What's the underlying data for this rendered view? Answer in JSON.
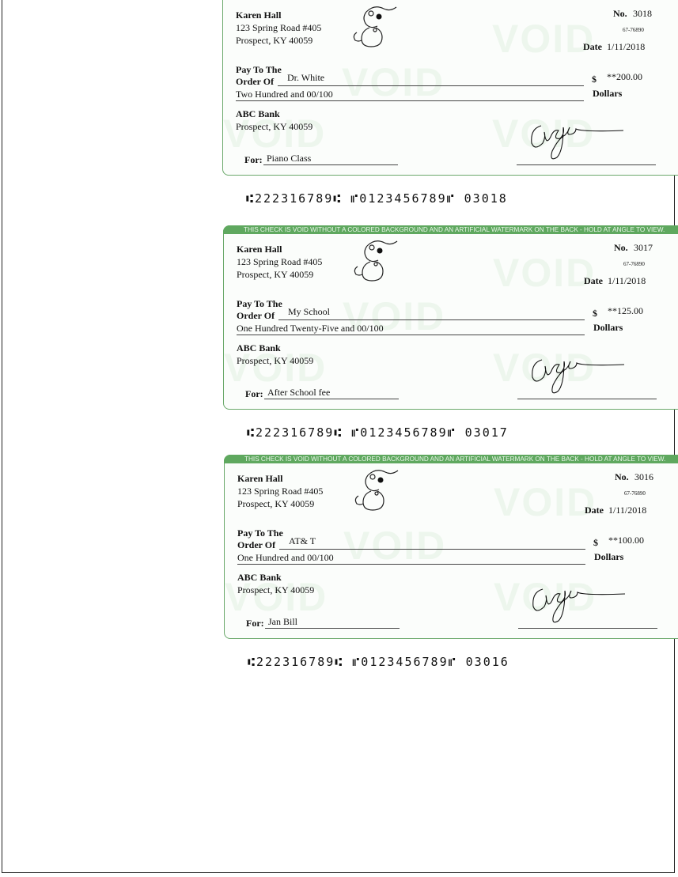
{
  "banner_text": "THIS CHECK IS VOID WITHOUT A COLORED BACKGROUND AND AN ARTIFICIAL WATERMARK ON THE BACK - HOLD AT ANGLE TO VIEW.",
  "watermark": "VOID",
  "labels": {
    "pay_to": "Pay To The",
    "order_of": "Order Of",
    "dollar_sign": "$",
    "dollars": "Dollars",
    "for": "For:",
    "no": "No.",
    "date": "Date"
  },
  "colors": {
    "accent": "#5fa85f"
  },
  "checks": [
    {
      "payer_name": "Karen Hall",
      "payer_address1": "123 Spring Road #405",
      "payer_address2": "Prospect, KY 40059",
      "number": "3018",
      "routing_fraction": "67-76890",
      "date": "1/11/2018",
      "payee": "Dr. White",
      "amount": "**200.00",
      "amount_words": "Two Hundred  and 00/100",
      "bank_name": "ABC Bank",
      "bank_address": "Prospect, KY 40059",
      "memo": "Piano Class",
      "micr": "⑆222316789⑆ ⑈0123456789⑈  03018"
    },
    {
      "payer_name": "Karen Hall",
      "payer_address1": "123 Spring Road #405",
      "payer_address2": "Prospect, KY 40059",
      "number": "3017",
      "routing_fraction": "67-76890",
      "date": "1/11/2018",
      "payee": "My School",
      "amount": "**125.00",
      "amount_words": "One Hundred Twenty-Five and 00/100",
      "bank_name": "ABC Bank",
      "bank_address": "Prospect, KY 40059",
      "memo": "After School fee",
      "micr": "⑆222316789⑆ ⑈0123456789⑈  03017"
    },
    {
      "payer_name": "Karen Hall",
      "payer_address1": "123 Spring Road #405",
      "payer_address2": "Prospect, KY 40059",
      "number": "3016",
      "routing_fraction": "67-76890",
      "date": "1/11/2018",
      "payee": "AT& T",
      "amount": "**100.00",
      "amount_words": "One Hundred  and 00/100",
      "bank_name": "ABC Bank",
      "bank_address": "Prospect, KY 40059",
      "memo": "Jan Bill",
      "micr": "⑆222316789⑆ ⑈0123456789⑈  03016"
    }
  ]
}
